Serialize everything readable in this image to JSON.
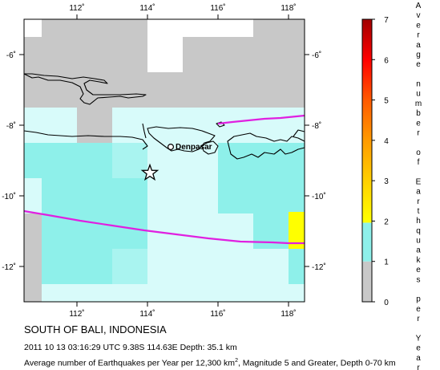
{
  "map": {
    "lon_ticks": [
      "112˚",
      "114˚",
      "116˚",
      "118˚"
    ],
    "lat_ticks": [
      "-6˚",
      "-8˚",
      "-10˚",
      "-12˚"
    ],
    "city": "Denpasar",
    "epicenter_marker": "star-icon",
    "colors": {
      "plate_boundary": "#e020e0",
      "coastline": "#000000",
      "grid_gray": "#c8c8c8",
      "grid_light_cyan": "#d8fbfa",
      "grid_cyan": "#a9f4f0",
      "grid_teal": "#8ef0ea",
      "grid_yellow": "#ffff00"
    }
  },
  "colorbar": {
    "title_chars": [
      "A",
      "v",
      "e",
      "r",
      "a",
      "g",
      "e",
      "",
      "n",
      "u",
      "m",
      "b",
      "e",
      "r",
      "",
      "o",
      "f",
      "",
      "E",
      "a",
      "r",
      "t",
      "h",
      "q",
      "u",
      "a",
      "k",
      "e",
      "s",
      "",
      "p",
      "e",
      "r",
      "",
      "Y",
      "e",
      "a",
      "r"
    ],
    "ticks": [
      "0",
      "1",
      "2",
      "3",
      "4",
      "5",
      "6",
      "7"
    ],
    "colors": [
      "#c8c8c8",
      "#8ef0ea",
      "#ffff00",
      "#ffc800",
      "#ff9600",
      "#ff6400",
      "#ff0000",
      "#a00000"
    ]
  },
  "caption": {
    "title": "SOUTH OF BALI, INDONESIA",
    "event": "2011 10 13 03:16:29 UTC 9.38S 114.63E Depth: 35.1 km",
    "desc_prefix": "Average number of Earthquakes per Year per 12,300 km",
    "desc_sup": "2",
    "desc_suffix": ", Magnitude 5 and Greater, Depth 0-70 km"
  }
}
